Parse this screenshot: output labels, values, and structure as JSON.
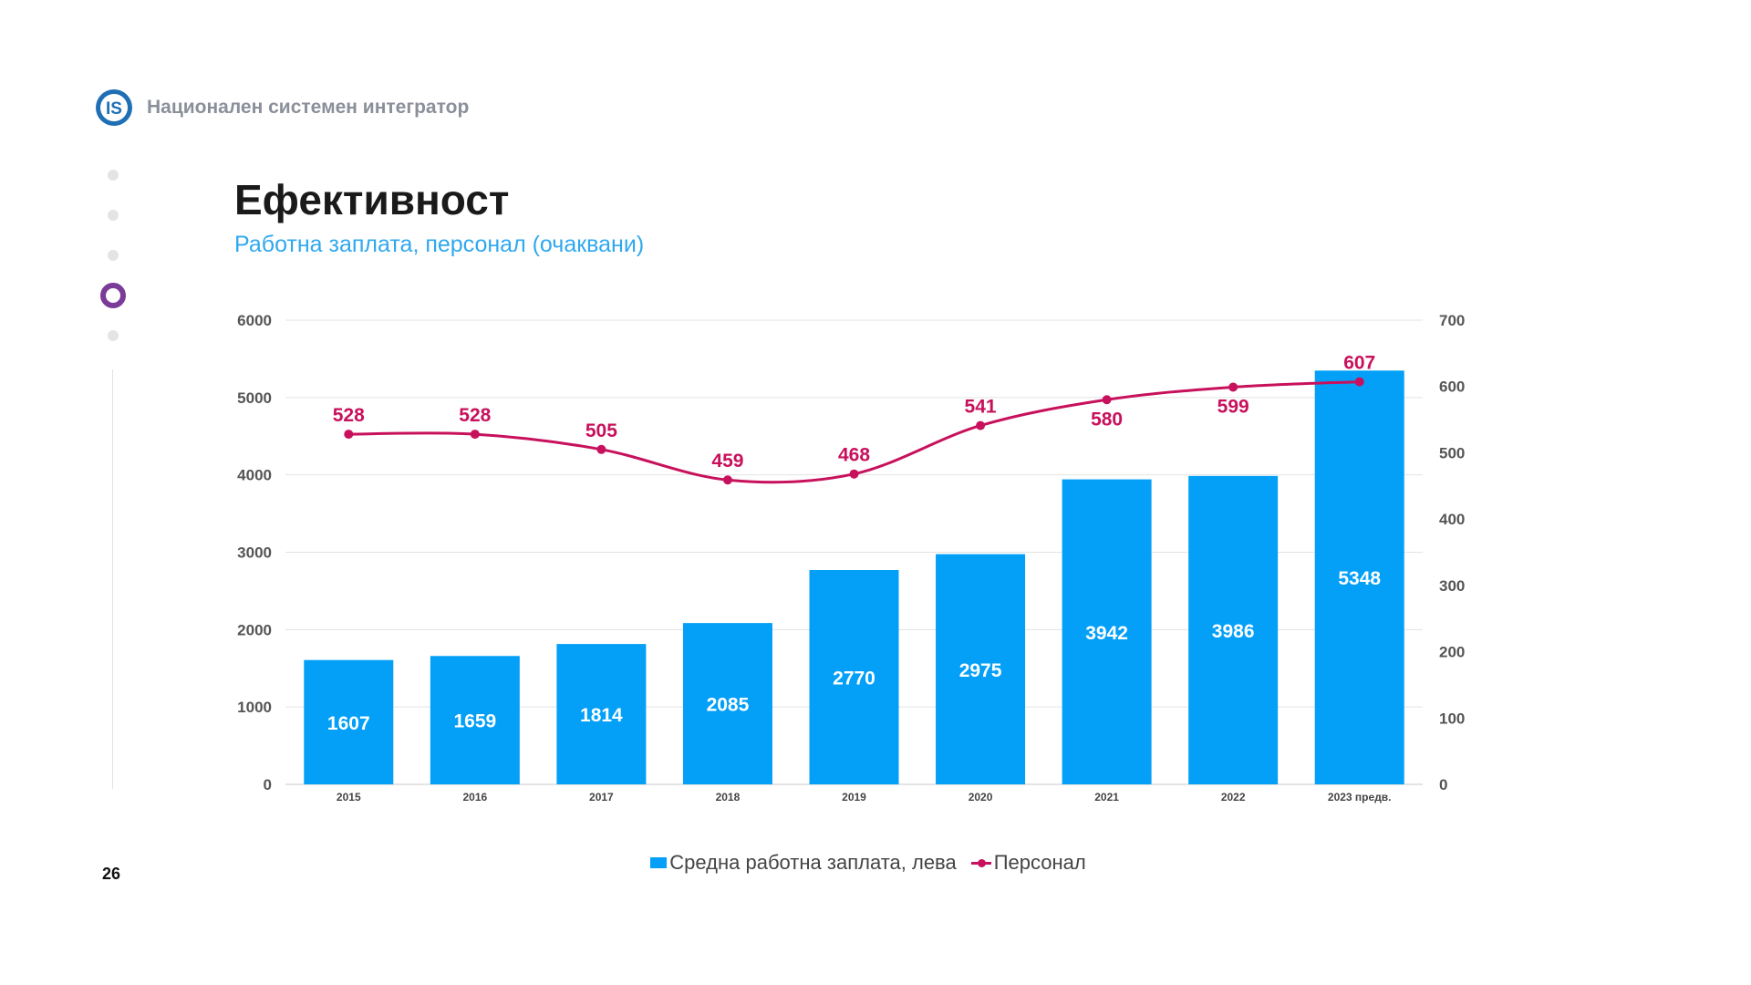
{
  "brand": {
    "name": "Национален системен интегратор"
  },
  "page": {
    "title": "Ефективност",
    "subtitle": "Работна заплата, персонал (очаквани)",
    "number": "26"
  },
  "colors": {
    "bars": "#04a0f7",
    "line": "#c8115c",
    "accent": "#7b3b98"
  },
  "chart_data": {
    "type": "bar",
    "categories": [
      "2015",
      "2016",
      "2017",
      "2018",
      "2019",
      "2020",
      "2021",
      "2022",
      "2023 предв."
    ],
    "series": [
      {
        "name": "Средна работна заплата, лева",
        "type": "bar",
        "axis": "left",
        "values": [
          1607,
          1659,
          1814,
          2085,
          2770,
          2975,
          3942,
          3986,
          5348
        ]
      },
      {
        "name": "Персонал",
        "type": "line",
        "axis": "right",
        "values": [
          528,
          528,
          505,
          459,
          468,
          541,
          580,
          599,
          607
        ]
      }
    ],
    "y_left": {
      "min": 0,
      "max": 6000,
      "ticks": [
        0,
        1000,
        2000,
        3000,
        4000,
        5000,
        6000
      ]
    },
    "y_right": {
      "min": 0,
      "max": 700,
      "ticks": [
        0,
        100,
        200,
        300,
        400,
        500,
        600,
        700
      ]
    },
    "grid": true,
    "legend": "bottom"
  }
}
